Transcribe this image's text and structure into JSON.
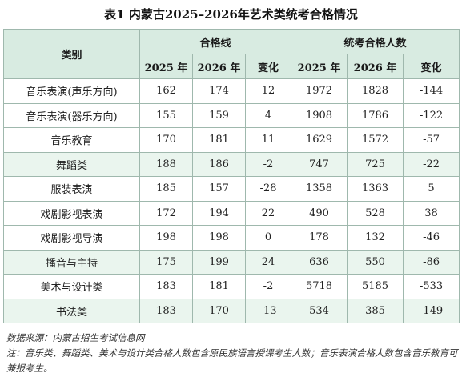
{
  "title": "表1 内蒙古2025–2026年艺术类统考合格情况",
  "header": {
    "category": "类别",
    "group1": "合格线",
    "group2": "统考合格人数",
    "sub": [
      "2025 年",
      "2026 年",
      "变化",
      "2025 年",
      "2026 年",
      "变化"
    ]
  },
  "rows": [
    {
      "name": "音乐表演(声乐方向)",
      "c1": "162",
      "c2": "174",
      "c3": "12",
      "c4": "1972",
      "c5": "1828",
      "c6": "-144"
    },
    {
      "name": "音乐表演(器乐方向)",
      "c1": "155",
      "c2": "159",
      "c3": "4",
      "c4": "1908",
      "c5": "1786",
      "c6": "-122"
    },
    {
      "name": "音乐教育",
      "c1": "170",
      "c2": "181",
      "c3": "11",
      "c4": "1629",
      "c5": "1572",
      "c6": "-57"
    },
    {
      "name": "舞蹈类",
      "c1": "188",
      "c2": "186",
      "c3": "-2",
      "c4": "747",
      "c5": "725",
      "c6": "-22"
    },
    {
      "name": "服装表演",
      "c1": "185",
      "c2": "157",
      "c3": "-28",
      "c4": "1358",
      "c5": "1363",
      "c6": "5"
    },
    {
      "name": "戏剧影视表演",
      "c1": "172",
      "c2": "194",
      "c3": "22",
      "c4": "490",
      "c5": "528",
      "c6": "38"
    },
    {
      "name": "戏剧影视导演",
      "c1": "198",
      "c2": "198",
      "c3": "0",
      "c4": "178",
      "c5": "132",
      "c6": "-46"
    },
    {
      "name": "播音与主持",
      "c1": "175",
      "c2": "199",
      "c3": "24",
      "c4": "636",
      "c5": "550",
      "c6": "-86"
    },
    {
      "name": "美术与设计类",
      "c1": "183",
      "c2": "181",
      "c3": "-2",
      "c4": "5718",
      "c5": "5185",
      "c6": "-533"
    },
    {
      "name": "书法类",
      "c1": "183",
      "c2": "170",
      "c3": "-13",
      "c4": "534",
      "c5": "385",
      "c6": "-149"
    }
  ],
  "notes": {
    "source": "数据来源：内蒙古招生考试信息网",
    "note": "注：音乐类、舞蹈类、美术与设计类合格人数包含原民族语言授课考生人数；音乐表演合格人数包含音乐教育可兼报考生。"
  }
}
